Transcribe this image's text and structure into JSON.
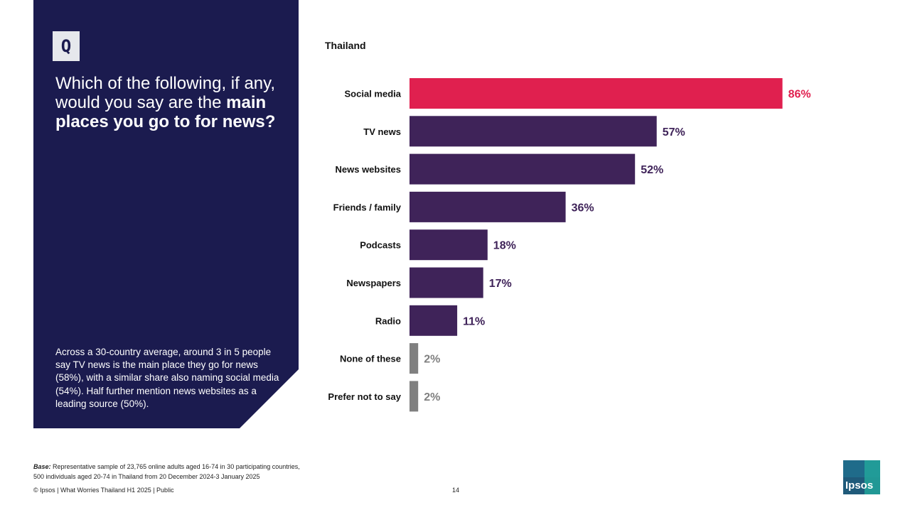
{
  "panel": {
    "badge": "Q",
    "question_part1": "Which of the following, if any, would you say are the ",
    "question_bold": "main places you go to for news?",
    "insight": "Across a 30-country average, around 3 in 5 people say TV news is the main place they go for news (58%), with a similar share also naming social media (54%). Half further mention news websites as a leading source (50%).",
    "colors": {
      "panel_bg": "#1b1b4f"
    }
  },
  "chart_data": {
    "type": "bar",
    "orientation": "horizontal",
    "title": "Thailand",
    "categories": [
      "Social media",
      "TV news",
      "News websites",
      "Friends / family",
      "Podcasts",
      "Newspapers",
      "Radio",
      "None of these",
      "Prefer not to say"
    ],
    "values": [
      86,
      57,
      52,
      36,
      18,
      17,
      11,
      2,
      2
    ],
    "labels": [
      "86%",
      "57%",
      "52%",
      "36%",
      "18%",
      "17%",
      "11%",
      "2%",
      "2%"
    ],
    "unit": "%",
    "xlim": [
      0,
      100
    ],
    "colors": [
      "#e0204f",
      "#3f2359",
      "#3f2359",
      "#3f2359",
      "#3f2359",
      "#3f2359",
      "#3f2359",
      "#808080",
      "#808080"
    ],
    "grid": false,
    "legend": "none"
  },
  "footer": {
    "base_label": "Base:",
    "base_line1": " Representative sample of 23,765 online adults aged 16-74 in 30 participating countries,",
    "base_line2": "500 individuals aged 20-74 in Thailand from 20 December 2024-3 January 2025",
    "copyright": "© Ipsos | What Worries Thailand H1 2025 | Public",
    "page": "14",
    "logo_text": "Ipsos"
  }
}
